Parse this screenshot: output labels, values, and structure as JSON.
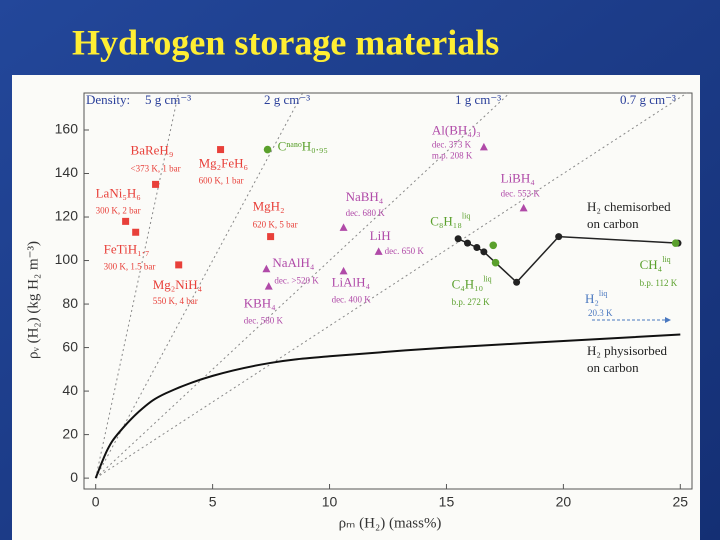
{
  "title": "Hydrogen storage materials",
  "chart_data": {
    "type": "scatter",
    "xlabel": "ρₘ (H₂) (mass%)",
    "ylabel": "ρᵥ (H₂) (kg H₂ m⁻³)",
    "xlim": [
      -0.5,
      25.5
    ],
    "ylim": [
      -5,
      177
    ],
    "xticks": [
      0,
      5,
      10,
      15,
      20,
      25
    ],
    "yticks": [
      0,
      20,
      40,
      60,
      80,
      100,
      120,
      140,
      160
    ],
    "density_title": "Density:",
    "density_lines": [
      {
        "value": 5,
        "label": "5 g cm⁻³"
      },
      {
        "value": 2,
        "label": "2 g cm⁻³"
      },
      {
        "value": 1,
        "label": "1 g cm⁻³"
      },
      {
        "value": 0.7,
        "label": "0.7 g cm⁻³"
      }
    ],
    "groups": [
      {
        "color": "#e8403a",
        "marker": "square",
        "points": [
          {
            "label": "BaReH₉",
            "notes": [
              "<373 K, 1 bar"
            ],
            "x": 2.56,
            "y": 135
          },
          {
            "label": "Mg₂FeH₆",
            "notes": [
              "600 K, 1 bar"
            ],
            "x": 5.34,
            "y": 151
          },
          {
            "label": "LaNi₅H₆",
            "notes": [
              "300 K, 2 bar"
            ],
            "x": 1.28,
            "y": 118
          },
          {
            "label": "FeTiH₁.₇",
            "notes": [
              "300 K, 1.5 bar"
            ],
            "x": 1.71,
            "y": 113
          },
          {
            "label": "Mg₂NiH₄",
            "notes": [
              "550 K, 4 bar"
            ],
            "x": 3.55,
            "y": 98
          },
          {
            "label": "MgH₂",
            "notes": [
              "620 K, 5 bar"
            ],
            "x": 7.48,
            "y": 111
          }
        ]
      },
      {
        "color": "#b04aa8",
        "marker": "triangle",
        "points": [
          {
            "label": "Al(BH₄)₃",
            "notes": [
              "dec. 373 K",
              "m.p. 208 K"
            ],
            "x": 16.6,
            "y": 152
          },
          {
            "label": "NaBH₄",
            "notes": [
              "dec. 680 K"
            ],
            "x": 10.6,
            "y": 115
          },
          {
            "label": "LiH",
            "notes": [
              "dec. 650 K"
            ],
            "x": 12.1,
            "y": 104
          },
          {
            "label": "NaAlH₄",
            "notes": [
              "dec. >520 K"
            ],
            "x": 7.3,
            "y": 96
          },
          {
            "label": "LiAlH₄",
            "notes": [
              "dec. 400 K"
            ],
            "x": 10.6,
            "y": 95
          },
          {
            "label": "KBH₄",
            "notes": [
              "dec. 580 K"
            ],
            "x": 7.4,
            "y": 88
          },
          {
            "label": "LiBH₄",
            "notes": [
              "dec. 553 K"
            ],
            "x": 18.3,
            "y": 124
          }
        ]
      },
      {
        "color": "#5aa02c",
        "marker": "circle",
        "points": [
          {
            "label": "CⁿᵃⁿᵒH₀.₉₅",
            "x": 7.35,
            "y": 151
          },
          {
            "label": "C₈H₁₈",
            "sup": "liq",
            "x": 17.0,
            "y": 107
          },
          {
            "label": "C₄H₁₀",
            "sup": "liq",
            "notes": [
              "b.p. 272 K"
            ],
            "x": 17.1,
            "y": 99
          },
          {
            "label": "CH₄",
            "sup": "liq",
            "notes": [
              "b.p. 112 K"
            ],
            "x": 24.8,
            "y": 108
          }
        ]
      }
    ],
    "curves": [
      {
        "label": [
          "H₂ chemisorbed",
          "on carbon"
        ],
        "color": "#222222",
        "markers": true,
        "x": [
          15.5,
          15.9,
          16.3,
          16.6,
          18.0,
          19.8,
          24.9
        ],
        "y": [
          110,
          108,
          106,
          104,
          90,
          111,
          108
        ]
      },
      {
        "label": [
          "H₂ physisorbed",
          "on carbon"
        ],
        "color": "#111111",
        "markers": false,
        "x": [
          0,
          0.5,
          1,
          2,
          3,
          5,
          7.5,
          10,
          15,
          20,
          25
        ],
        "y": [
          0,
          13,
          21,
          32,
          39,
          47,
          53,
          56,
          60,
          63,
          66
        ]
      }
    ],
    "h2_liquid": {
      "label": "H₂",
      "sup": "liq",
      "note": "20.3 K"
    }
  }
}
